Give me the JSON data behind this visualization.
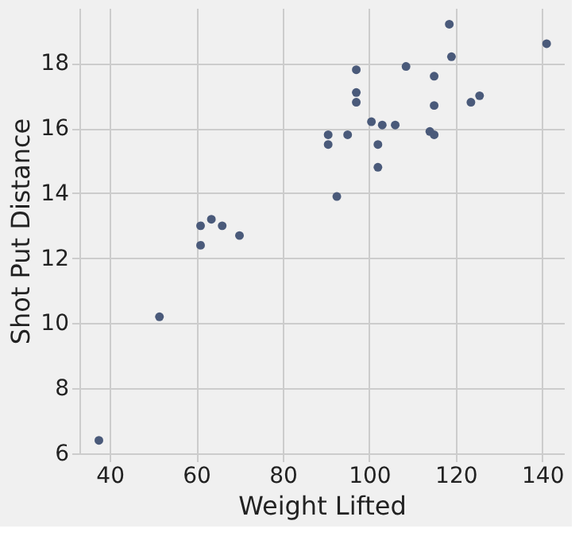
{
  "chart_data": {
    "type": "scatter",
    "xlabel": "Weight Lifted",
    "ylabel": "Shot Put Distance",
    "x": [
      37.5,
      51.5,
      61,
      61,
      63.5,
      66,
      70,
      90.5,
      90.5,
      92.5,
      95,
      97,
      97,
      97,
      100.5,
      102,
      102,
      103,
      106,
      108.5,
      114,
      115,
      115,
      115,
      118.5,
      119,
      123.5,
      125.5,
      141
    ],
    "values": [
      6.4,
      10.2,
      13.0,
      12.4,
      13.2,
      13.0,
      12.7,
      15.8,
      15.5,
      13.9,
      15.8,
      17.8,
      17.1,
      16.8,
      16.2,
      15.5,
      14.8,
      16.1,
      16.1,
      17.9,
      15.9,
      15.8,
      17.6,
      16.7,
      19.2,
      18.2,
      16.8,
      17.0,
      18.6
    ],
    "color": "#4a5a7a",
    "marker": "circle",
    "grid": true,
    "xlim": [
      33,
      145
    ],
    "ylim": [
      6,
      19.7
    ],
    "xticks": [
      40,
      60,
      80,
      100,
      120,
      140
    ],
    "yticks": [
      6,
      8,
      10,
      12,
      14,
      16,
      18
    ]
  }
}
